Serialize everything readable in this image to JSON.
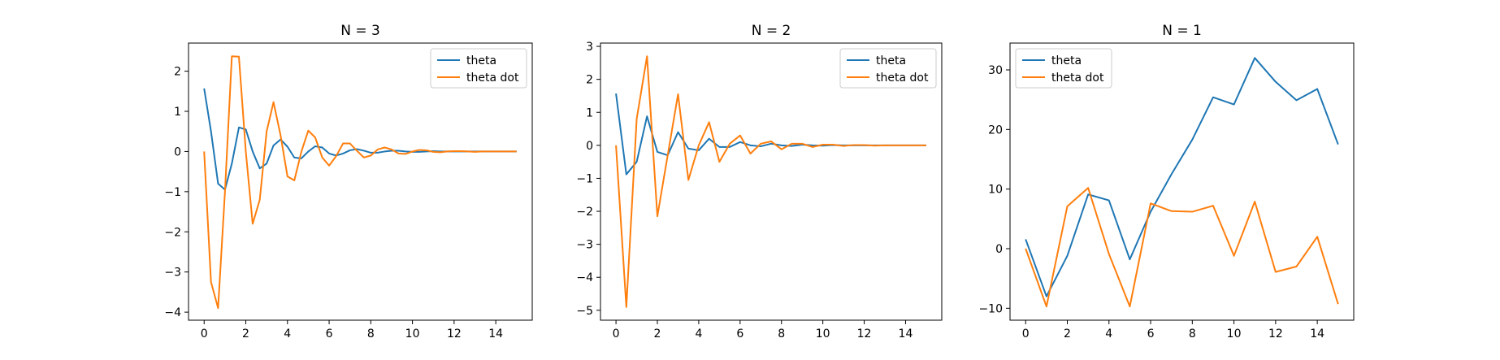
{
  "chart_data": [
    {
      "type": "line",
      "title": "N = 3",
      "xlabel": "",
      "ylabel": "",
      "xlim": [
        -0.75,
        15.75
      ],
      "ylim": [
        -4.2,
        2.7
      ],
      "xticks": [
        0,
        2,
        4,
        6,
        8,
        10,
        12,
        14
      ],
      "yticks": [
        -4,
        -3,
        -2,
        -1,
        0,
        1,
        2
      ],
      "legend": "top-right",
      "series": [
        {
          "name": "theta",
          "color": "#1f77b4",
          "x": [
            0,
            0.33,
            0.67,
            1,
            1.33,
            1.67,
            2,
            2.33,
            2.67,
            3,
            3.33,
            3.67,
            4,
            4.33,
            4.67,
            5,
            5.33,
            5.67,
            6,
            6.33,
            6.67,
            7,
            7.33,
            7.67,
            8,
            8.33,
            8.67,
            9,
            9.33,
            9.67,
            10,
            10.33,
            10.67,
            11,
            11.33,
            11.67,
            12,
            12.33,
            12.67,
            13,
            13.33,
            13.67,
            14,
            14.33,
            14.67,
            15
          ],
          "y": [
            1.57,
            0.5,
            -0.8,
            -0.95,
            -0.3,
            0.6,
            0.55,
            0.0,
            -0.42,
            -0.3,
            0.15,
            0.3,
            0.12,
            -0.15,
            -0.17,
            0.0,
            0.13,
            0.1,
            -0.05,
            -0.1,
            -0.05,
            0.03,
            0.06,
            0.02,
            -0.03,
            -0.03,
            0.0,
            0.02,
            0.02,
            0.0,
            -0.01,
            -0.01,
            0.0,
            0.01,
            0.0,
            0.0,
            0.0,
            0.0,
            0.0,
            0.0,
            0.0,
            0.0,
            0.0,
            0.0,
            0.0,
            0.0
          ]
        },
        {
          "name": "theta dot",
          "color": "#ff7f0e",
          "x": [
            0,
            0.33,
            0.67,
            1,
            1.33,
            1.67,
            2,
            2.33,
            2.67,
            3,
            3.33,
            3.67,
            4,
            4.33,
            4.67,
            5,
            5.33,
            5.67,
            6,
            6.33,
            6.67,
            7,
            7.33,
            7.67,
            8,
            8.33,
            8.67,
            9,
            9.33,
            9.67,
            10,
            10.33,
            10.67,
            11,
            11.33,
            11.67,
            12,
            12.33,
            12.67,
            13,
            13.33,
            13.67,
            14,
            14.33,
            14.67,
            15
          ],
          "y": [
            0.0,
            -3.25,
            -3.9,
            -1.0,
            2.37,
            2.36,
            0.0,
            -1.8,
            -1.2,
            0.5,
            1.23,
            0.4,
            -0.62,
            -0.72,
            0.0,
            0.52,
            0.35,
            -0.15,
            -0.35,
            -0.12,
            0.2,
            0.2,
            0.02,
            -0.15,
            -0.1,
            0.05,
            0.1,
            0.05,
            -0.05,
            -0.06,
            0.0,
            0.04,
            0.03,
            -0.01,
            -0.02,
            0.0,
            0.01,
            0.01,
            0.0,
            -0.01,
            0.0,
            0.0,
            0.0,
            0.0,
            0.0,
            0.0
          ]
        }
      ]
    },
    {
      "type": "line",
      "title": "N = 2",
      "xlabel": "",
      "ylabel": "",
      "xlim": [
        -0.75,
        15.75
      ],
      "ylim": [
        -5.3,
        3.1
      ],
      "xticks": [
        0,
        2,
        4,
        6,
        8,
        10,
        12,
        14
      ],
      "yticks": [
        -5,
        -4,
        -3,
        -2,
        -1,
        0,
        1,
        2,
        3
      ],
      "legend": "top-right",
      "series": [
        {
          "name": "theta",
          "color": "#1f77b4",
          "x": [
            0,
            0.5,
            1,
            1.5,
            2,
            2.5,
            3,
            3.5,
            4,
            4.5,
            5,
            5.5,
            6,
            6.5,
            7,
            7.5,
            8,
            8.5,
            9,
            9.5,
            10,
            10.5,
            11,
            11.5,
            12,
            12.5,
            13,
            13.5,
            14,
            14.5,
            15
          ],
          "y": [
            1.57,
            -0.88,
            -0.5,
            0.88,
            -0.2,
            -0.3,
            0.4,
            -0.1,
            -0.15,
            0.2,
            -0.05,
            -0.05,
            0.1,
            0.0,
            -0.03,
            0.05,
            0.0,
            -0.02,
            0.02,
            0.0,
            -0.01,
            0.01,
            0.0,
            0.0,
            0.0,
            0.0,
            0.0,
            0.0,
            0.0,
            0.0,
            0.0
          ]
        },
        {
          "name": "theta dot",
          "color": "#ff7f0e",
          "x": [
            0,
            0.5,
            1,
            1.5,
            2,
            2.5,
            3,
            3.5,
            4,
            4.5,
            5,
            5.5,
            6,
            6.5,
            7,
            7.5,
            8,
            8.5,
            9,
            9.5,
            10,
            10.5,
            11,
            11.5,
            12,
            12.5,
            13,
            13.5,
            14,
            14.5,
            15
          ],
          "y": [
            0.0,
            -4.9,
            0.8,
            2.7,
            -2.15,
            -0.3,
            1.55,
            -1.05,
            0.0,
            0.7,
            -0.5,
            0.05,
            0.3,
            -0.25,
            0.05,
            0.12,
            -0.12,
            0.05,
            0.05,
            -0.05,
            0.02,
            0.02,
            -0.02,
            0.01,
            0.01,
            -0.01,
            0.0,
            0.0,
            0.0,
            0.0,
            0.0
          ]
        }
      ]
    },
    {
      "type": "line",
      "title": "N = 1",
      "xlabel": "",
      "ylabel": "",
      "xlim": [
        -0.75,
        15.75
      ],
      "ylim": [
        -12.0,
        34.5
      ],
      "xticks": [
        0,
        2,
        4,
        6,
        8,
        10,
        12,
        14
      ],
      "yticks": [
        -10,
        0,
        10,
        20,
        30
      ],
      "legend": "top-left",
      "series": [
        {
          "name": "theta",
          "color": "#1f77b4",
          "x": [
            0,
            1,
            2,
            3,
            4,
            5,
            6,
            7,
            8,
            9,
            10,
            11,
            12,
            13,
            14,
            15
          ],
          "y": [
            1.57,
            -8.0,
            -1.2,
            9.1,
            8.1,
            -1.8,
            6.2,
            12.5,
            18.3,
            25.4,
            24.2,
            32.0,
            28.0,
            24.9,
            26.8,
            17.5
          ]
        },
        {
          "name": "theta dot",
          "color": "#ff7f0e",
          "x": [
            0,
            1,
            2,
            3,
            4,
            5,
            6,
            7,
            8,
            9,
            10,
            11,
            12,
            13,
            14,
            15
          ],
          "y": [
            0.0,
            -9.7,
            7.1,
            10.2,
            -0.9,
            -9.7,
            7.6,
            6.3,
            6.2,
            7.2,
            -1.2,
            7.9,
            -3.9,
            -3.0,
            2.0,
            -9.3
          ]
        }
      ]
    }
  ]
}
